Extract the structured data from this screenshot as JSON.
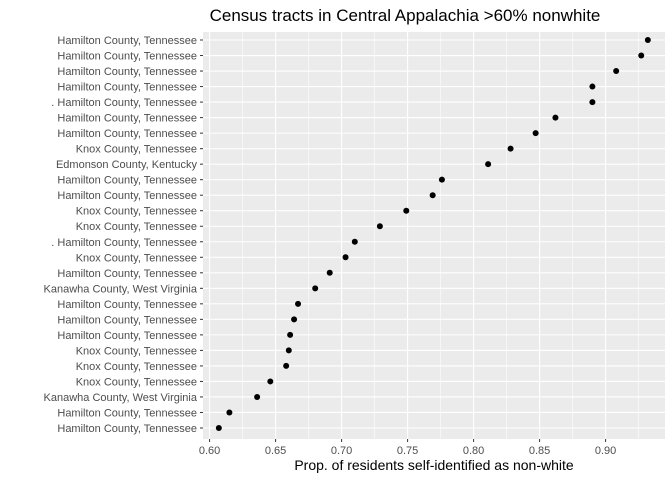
{
  "chart_data": {
    "type": "scatter",
    "title": "Census tracts in Central Appalachia >60% nonwhite",
    "xlabel": "Prop. of residents self-identified as non-white",
    "ylabel": "",
    "xlim": [
      0.595,
      0.945
    ],
    "xticks": [
      "0.60",
      "0.65",
      "0.70",
      "0.75",
      "0.80",
      "0.85",
      "0.90"
    ],
    "grid": true,
    "legend": "none",
    "colors": {
      "panel": "#ebebeb",
      "grid": "#ffffff",
      "point": "#000000",
      "tick_text": "#4d4d4d"
    },
    "categories": [
      "Hamilton County, Tennessee",
      "Hamilton County, Tennessee",
      "Hamilton County, Tennessee",
      "Hamilton County, Tennessee",
      ". Hamilton County, Tennessee",
      "Hamilton County, Tennessee",
      "Hamilton County, Tennessee",
      "Knox County, Tennessee",
      "Edmonson County, Kentucky",
      "Hamilton County, Tennessee",
      "Hamilton County, Tennessee",
      "Knox County, Tennessee",
      "Knox County, Tennessee",
      ". Hamilton County, Tennessee",
      "Knox County, Tennessee",
      "Hamilton County, Tennessee",
      "Kanawha County, West Virginia",
      "Hamilton County, Tennessee",
      "Hamilton County, Tennessee",
      "Hamilton County, Tennessee",
      "Knox County, Tennessee",
      "Knox County, Tennessee",
      "Knox County, Tennessee",
      "Kanawha County, West Virginia",
      "Hamilton County, Tennessee",
      "Hamilton County, Tennessee"
    ],
    "values": [
      0.932,
      0.927,
      0.908,
      0.89,
      0.89,
      0.862,
      0.847,
      0.828,
      0.811,
      0.776,
      0.769,
      0.749,
      0.729,
      0.71,
      0.703,
      0.691,
      0.68,
      0.667,
      0.664,
      0.661,
      0.66,
      0.658,
      0.646,
      0.636,
      0.615,
      0.607
    ]
  }
}
